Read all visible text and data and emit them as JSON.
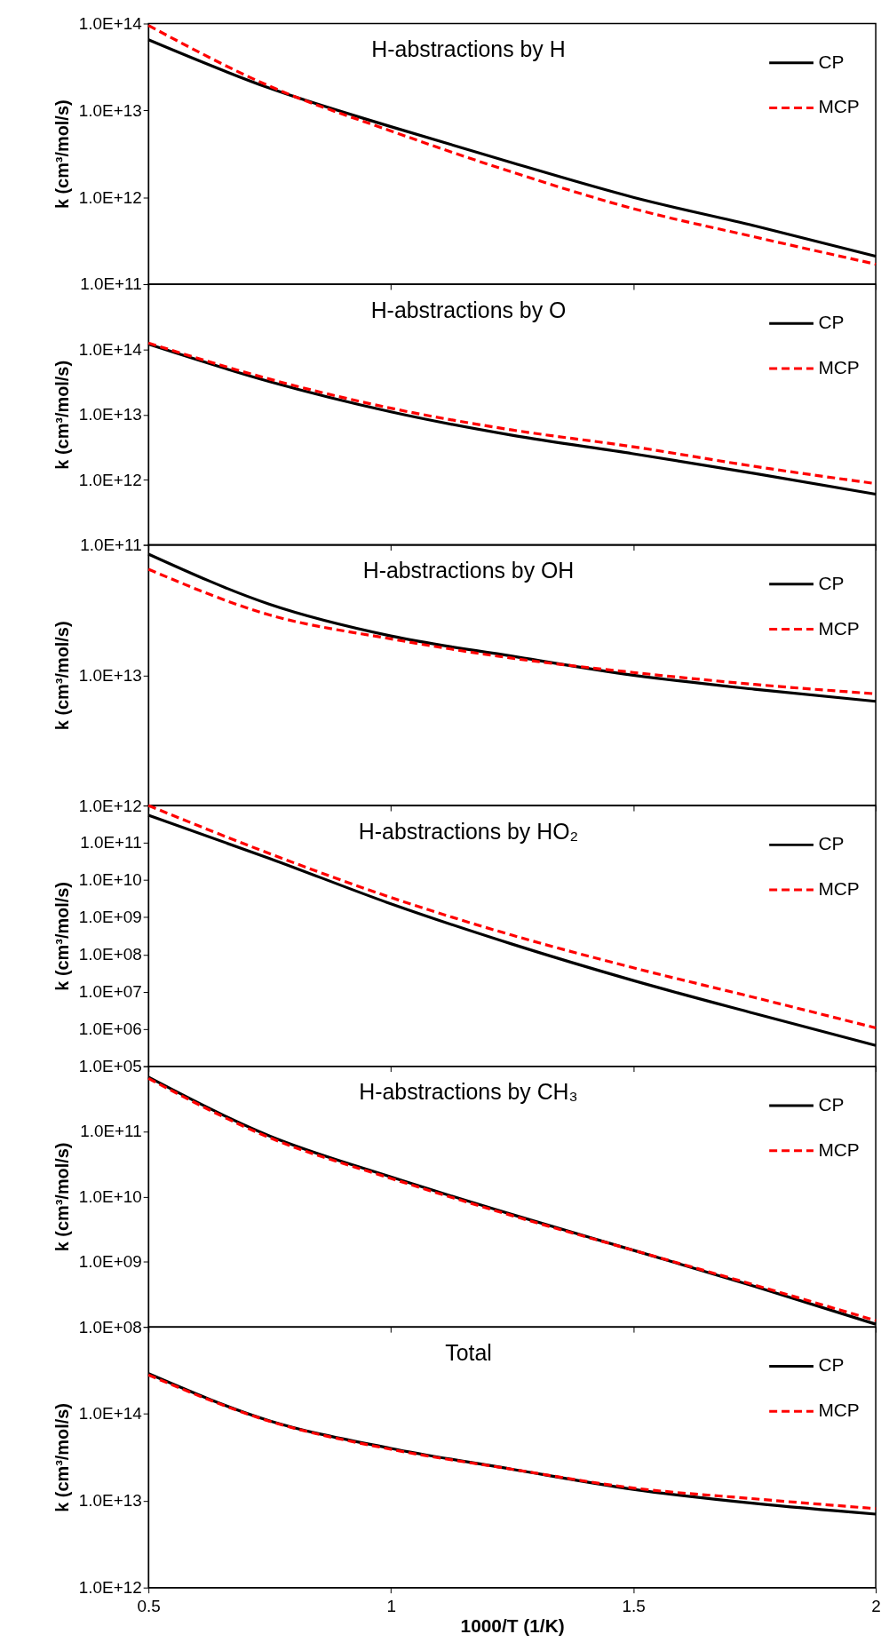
{
  "chart_data": [
    {
      "type": "line",
      "title": "H-abstractions by H",
      "ylabel": "k (cm³/mol/s)",
      "x": [
        0.5,
        0.75,
        1.0,
        1.25,
        1.5,
        1.75,
        2.0
      ],
      "series": [
        {
          "name": "CP",
          "color": "#000000",
          "line_style": "solid",
          "values": [
            65000000000000.0,
            18000000000000.0,
            6500000000000.0,
            2500000000000.0,
            1000000000000.0,
            470000000000.0,
            210000000000.0
          ]
        },
        {
          "name": "MCP",
          "color": "#ff0000",
          "line_style": "dashed",
          "values": [
            95000000000000.0,
            19000000000000.0,
            5800000000000.0,
            1950000000000.0,
            740000000000.0,
            350000000000.0,
            170000000000.0
          ]
        }
      ],
      "xlim": [
        0.5,
        2
      ],
      "xticks": [
        0.5,
        1,
        1.5,
        2
      ],
      "ylim": [
        100000000000.0,
        100000000000000.0
      ],
      "yticks": [
        {
          "value": 100000000000.0,
          "label": "1.0E+11"
        },
        {
          "value": 1000000000000.0,
          "label": "1.0E+12"
        },
        {
          "value": 10000000000000.0,
          "label": "1.0E+13"
        },
        {
          "value": 100000000000000.0,
          "label": "1.0E+14"
        }
      ],
      "log": true,
      "legend": "top right",
      "tick_labels": "y"
    },
    {
      "type": "line",
      "title": "H-abstractions by O",
      "ylabel": "k (cm³/mol/s)",
      "x": [
        0.5,
        0.75,
        1.0,
        1.25,
        1.5,
        1.75,
        2.0
      ],
      "series": [
        {
          "name": "CP",
          "color": "#000000",
          "line_style": "solid",
          "values": [
            120000000000000.0,
            32000000000000.0,
            11000000000000.0,
            4800000000000.0,
            2500000000000.0,
            1250000000000.0,
            600000000000.0
          ]
        },
        {
          "name": "MCP",
          "color": "#ff0000",
          "line_style": "dashed",
          "values": [
            125000000000000.0,
            35000000000000.0,
            12500000000000.0,
            5800000000000.0,
            3200000000000.0,
            1600000000000.0,
            870000000000.0
          ]
        }
      ],
      "xlim": [
        0.5,
        2
      ],
      "xticks": [
        0.5,
        1,
        1.5,
        2
      ],
      "ylim": [
        100000000000.0,
        1000000000000000.0
      ],
      "yticks": [
        {
          "value": 100000000000.0,
          "label": "1.0E+11"
        },
        {
          "value": 1000000000000.0,
          "label": "1.0E+12"
        },
        {
          "value": 10000000000000.0,
          "label": "1.0E+13"
        },
        {
          "value": 100000000000000.0,
          "label": "1.0E+14"
        },
        {
          "value": 1000000000000000.0,
          "label": null
        }
      ],
      "log": true,
      "legend": "top right",
      "tick_labels": "y"
    },
    {
      "type": "line",
      "title": "H-abstractions by OH",
      "ylabel": "k (cm³/mol/s)",
      "x": [
        0.5,
        0.75,
        1.0,
        1.25,
        1.5,
        1.75,
        2.0
      ],
      "series": [
        {
          "name": "CP",
          "color": "#000000",
          "line_style": "solid",
          "values": [
            85000000000000.0,
            35000000000000.0,
            20000000000000.0,
            14000000000000.0,
            10000000000000.0,
            7800000000000.0,
            6300000000000.0
          ]
        },
        {
          "name": "MCP",
          "color": "#ff0000",
          "line_style": "dashed",
          "values": [
            65000000000000.0,
            29000000000000.0,
            19000000000000.0,
            13500000000000.0,
            10500000000000.0,
            8500000000000.0,
            7200000000000.0
          ]
        }
      ],
      "xlim": [
        0.5,
        2
      ],
      "xticks": [
        0.5,
        1,
        1.5,
        2
      ],
      "ylim": [
        1000000000000.0,
        100000000000000.0
      ],
      "yticks": [
        {
          "value": 1000000000000.0,
          "label": "1.0E+12"
        },
        {
          "value": 10000000000000.0,
          "label": "1.0E+13"
        },
        {
          "value": 100000000000000.0,
          "label": null
        }
      ],
      "log": true,
      "legend": "top right",
      "tick_labels": "y"
    },
    {
      "type": "line",
      "title": "H-abstractions by HO₂",
      "ylabel": "k (cm³/mol/s)",
      "x": [
        0.5,
        0.75,
        1.0,
        1.25,
        1.5,
        1.75,
        2.0
      ],
      "series": [
        {
          "name": "CP",
          "color": "#000000",
          "line_style": "solid",
          "values": [
            550000000000.0,
            38000000000.0,
            2300000000.0,
            190000000.0,
            20000000.0,
            2600000.0,
            360000.0
          ]
        },
        {
          "name": "MCP",
          "color": "#ff0000",
          "line_style": "dashed",
          "values": [
            1000000000000.0,
            51000000000.0,
            3400000000.0,
            330000000.0,
            44000000.0,
            7000000.0,
            1070000.0
          ]
        }
      ],
      "xlim": [
        0.5,
        2
      ],
      "xticks": [
        0.5,
        1,
        1.5,
        2
      ],
      "ylim": [
        100000.0,
        1000000000000.0
      ],
      "yticks": [
        {
          "value": 100000.0,
          "label": "1.0E+05"
        },
        {
          "value": 1000000.0,
          "label": "1.0E+06"
        },
        {
          "value": 10000000.0,
          "label": "1.0E+07"
        },
        {
          "value": 100000000.0,
          "label": "1.0E+08"
        },
        {
          "value": 1000000000.0,
          "label": "1.0E+09"
        },
        {
          "value": 10000000000.0,
          "label": "1.0E+10"
        },
        {
          "value": 100000000000.0,
          "label": "1.0E+11"
        },
        {
          "value": 1000000000000.0,
          "label": null
        }
      ],
      "log": true,
      "legend": "top right",
      "tick_labels": "y"
    },
    {
      "type": "line",
      "title": "H-abstractions by CH₃",
      "ylabel": "k (cm³/mol/s)",
      "x": [
        0.5,
        0.75,
        1.0,
        1.25,
        1.5,
        1.75,
        2.0
      ],
      "series": [
        {
          "name": "CP",
          "color": "#000000",
          "line_style": "solid",
          "values": [
            680000000000.0,
            85000000000.0,
            20000000000.0,
            5300000000.0,
            1500000000.0,
            420000000.0,
            110000000.0
          ]
        },
        {
          "name": "MCP",
          "color": "#ff0000",
          "line_style": "dashed",
          "values": [
            650000000000.0,
            80000000000.0,
            19000000000.0,
            5100000000.0,
            1500000000.0,
            440000000.0,
            125000000.0
          ]
        }
      ],
      "xlim": [
        0.5,
        2
      ],
      "xticks": [
        0.5,
        1,
        1.5,
        2
      ],
      "ylim": [
        100000000.0,
        1000000000000.0
      ],
      "yticks": [
        {
          "value": 100000000.0,
          "label": "1.0E+08"
        },
        {
          "value": 1000000000.0,
          "label": "1.0E+09"
        },
        {
          "value": 10000000000.0,
          "label": "1.0E+10"
        },
        {
          "value": 100000000000.0,
          "label": "1.0E+11"
        },
        {
          "value": 1000000000000.0,
          "label": null
        }
      ],
      "log": true,
      "legend": "top right",
      "tick_labels": "y"
    },
    {
      "type": "line",
      "title": "Total",
      "ylabel": "k (cm³/mol/s)",
      "xlabel": "1000/T (1/K)",
      "x": [
        0.5,
        0.75,
        1.0,
        1.25,
        1.5,
        1.75,
        2.0
      ],
      "series": [
        {
          "name": "CP",
          "color": "#000000",
          "line_style": "solid",
          "values": [
            290000000000000.0,
            83000000000000.0,
            40000000000000.0,
            23000000000000.0,
            13500000000000.0,
            9300000000000.0,
            7000000000000.0
          ]
        },
        {
          "name": "MCP",
          "color": "#ff0000",
          "line_style": "dashed",
          "values": [
            280000000000000.0,
            82000000000000.0,
            39000000000000.0,
            23000000000000.0,
            14000000000000.0,
            10500000000000.0,
            8100000000000.0
          ]
        }
      ],
      "xlim": [
        0.5,
        2
      ],
      "xticks": [
        0.5,
        1,
        1.5,
        2
      ],
      "ylim": [
        1000000000000.0,
        1000000000000000.0
      ],
      "yticks": [
        {
          "value": 1000000000000.0,
          "label": "1.0E+12"
        },
        {
          "value": 10000000000000.0,
          "label": "1.0E+13"
        },
        {
          "value": 100000000000000.0,
          "label": "1.0E+14"
        },
        {
          "value": 1000000000000000.0,
          "label": null
        }
      ],
      "log": true,
      "legend": "top right"
    }
  ]
}
